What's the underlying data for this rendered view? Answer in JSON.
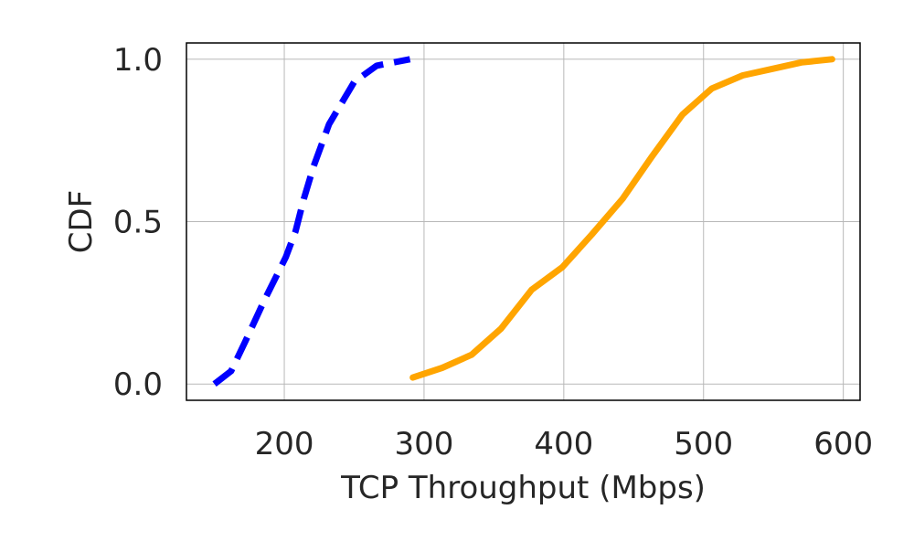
{
  "chart_data": {
    "type": "line",
    "xlabel": "TCP Throughput (Mbps)",
    "ylabel": "CDF",
    "xlim": [
      130,
      612
    ],
    "ylim": [
      -0.05,
      1.05
    ],
    "xticks": [
      200,
      300,
      400,
      500,
      600
    ],
    "yticks": [
      0.0,
      0.5,
      1.0
    ],
    "xtick_labels": [
      "200",
      "300",
      "400",
      "500",
      "600"
    ],
    "ytick_labels": [
      "0.0",
      "0.5",
      "1.0"
    ],
    "grid": true,
    "series": [
      {
        "color": "#0000ff",
        "style": "dashed",
        "x": [
          150,
          162,
          172,
          186,
          201,
          208,
          214,
          221,
          232,
          250,
          266,
          290
        ],
        "y": [
          0.0,
          0.04,
          0.13,
          0.26,
          0.39,
          0.47,
          0.57,
          0.67,
          0.8,
          0.93,
          0.98,
          1.0
        ]
      },
      {
        "color": "#ffa500",
        "style": "solid",
        "x": [
          292,
          313,
          334,
          355,
          377,
          399,
          420,
          442,
          463,
          485,
          506,
          528,
          549,
          570,
          592
        ],
        "y": [
          0.02,
          0.05,
          0.09,
          0.17,
          0.29,
          0.36,
          0.46,
          0.57,
          0.7,
          0.83,
          0.91,
          0.95,
          0.97,
          0.99,
          1.0
        ]
      }
    ]
  }
}
